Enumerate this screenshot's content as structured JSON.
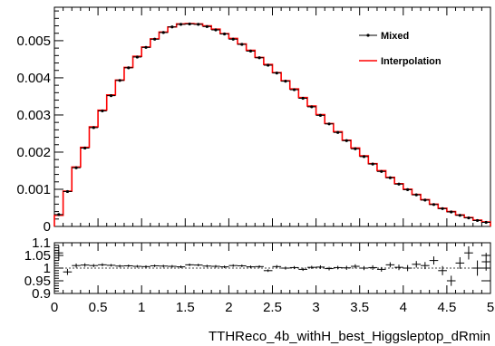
{
  "chart_data": [
    {
      "type": "line",
      "title": "",
      "xlabel": "",
      "ylabel": "",
      "xlim": [
        0,
        5
      ],
      "ylim": [
        0,
        0.0059
      ],
      "x_ticks": [
        0,
        0.5,
        1,
        1.5,
        2,
        2.5,
        3,
        3.5,
        4,
        4.5,
        5
      ],
      "y_ticks": [
        "0",
        "0.001",
        "0.002",
        "0.003",
        "0.004",
        "0.005"
      ],
      "y_tick_values": [
        0,
        0.001,
        0.002,
        0.003,
        0.004,
        0.005
      ],
      "legend_position": "top-right",
      "bin_width": 0.1,
      "bin_centers": [
        0.05,
        0.15,
        0.25,
        0.35,
        0.45,
        0.55,
        0.65,
        0.75,
        0.85,
        0.95,
        1.05,
        1.15,
        1.25,
        1.35,
        1.45,
        1.55,
        1.65,
        1.75,
        1.85,
        1.95,
        2.05,
        2.15,
        2.25,
        2.35,
        2.45,
        2.55,
        2.65,
        2.75,
        2.85,
        2.95,
        3.05,
        3.15,
        3.25,
        3.35,
        3.45,
        3.55,
        3.65,
        3.75,
        3.85,
        3.95,
        4.05,
        4.15,
        4.25,
        4.35,
        4.45,
        4.55,
        4.65,
        4.75,
        4.85,
        4.95
      ],
      "series": [
        {
          "name": "Mixed",
          "style": "points-with-errors",
          "color": "#000000",
          "values": [
            0.00032,
            0.00094,
            0.00158,
            0.00211,
            0.00266,
            0.00311,
            0.00352,
            0.00393,
            0.00427,
            0.00456,
            0.00482,
            0.00504,
            0.00522,
            0.00537,
            0.00544,
            0.00545,
            0.00544,
            0.00538,
            0.00529,
            0.00518,
            0.00504,
            0.0049,
            0.00472,
            0.00454,
            0.00434,
            0.00413,
            0.00391,
            0.00368,
            0.00345,
            0.00322,
            0.00299,
            0.00276,
            0.00253,
            0.00231,
            0.00209,
            0.00188,
            0.00168,
            0.00148,
            0.00131,
            0.00114,
            0.00099,
            0.00085,
            0.00071,
            0.00059,
            0.00048,
            0.00039,
            0.0003,
            0.00023,
            0.00016,
            0.00011
          ]
        },
        {
          "name": "Interpolation",
          "style": "step",
          "color": "#ff0000",
          "values": [
            0.0003,
            0.00095,
            0.0016,
            0.00213,
            0.00268,
            0.00313,
            0.00354,
            0.00394,
            0.00428,
            0.00458,
            0.00483,
            0.00505,
            0.00523,
            0.00537,
            0.00545,
            0.00546,
            0.00545,
            0.0054,
            0.00531,
            0.00519,
            0.00506,
            0.00491,
            0.00474,
            0.00455,
            0.00436,
            0.00414,
            0.00392,
            0.0037,
            0.00347,
            0.00324,
            0.00301,
            0.00277,
            0.00255,
            0.00232,
            0.00211,
            0.0019,
            0.00169,
            0.0015,
            0.00132,
            0.00115,
            0.001,
            0.00086,
            0.00072,
            0.0006,
            0.00049,
            0.0004,
            0.00031,
            0.00024,
            0.00017,
            0.00012
          ]
        }
      ]
    },
    {
      "type": "scatter",
      "title": "",
      "xlabel": "TTHReco_4b_withH_best_Higgsleptop_dRmin",
      "ylabel": "",
      "xlim": [
        0,
        5
      ],
      "ylim": [
        0.9,
        1.1
      ],
      "x_ticks": [
        0,
        0.5,
        1,
        1.5,
        2,
        2.5,
        3,
        3.5,
        4,
        4.5,
        5
      ],
      "y_ticks": [
        "0.9",
        "0.95",
        "1",
        "1.05",
        "1.1"
      ],
      "y_tick_values": [
        0.9,
        0.95,
        1,
        1.05,
        1.1
      ],
      "reference_line": 1,
      "x": [
        0.05,
        0.15,
        0.25,
        0.35,
        0.45,
        0.55,
        0.65,
        0.75,
        0.85,
        0.95,
        1.05,
        1.15,
        1.25,
        1.35,
        1.45,
        1.55,
        1.65,
        1.75,
        1.85,
        1.95,
        2.05,
        2.15,
        2.25,
        2.35,
        2.45,
        2.55,
        2.65,
        2.75,
        2.85,
        2.95,
        3.05,
        3.15,
        3.25,
        3.35,
        3.45,
        3.55,
        3.65,
        3.75,
        3.85,
        3.95,
        4.05,
        4.15,
        4.25,
        4.35,
        4.45,
        4.55,
        4.65,
        4.75,
        4.85,
        4.95
      ],
      "y": [
        1.06,
        0.985,
        1.01,
        1.012,
        1.01,
        1.013,
        1.011,
        1.008,
        1.009,
        1.007,
        1.006,
        1.009,
        1.008,
        1.007,
        1.005,
        1.013,
        1.012,
        1.008,
        1.007,
        1.005,
        1.01,
        1.009,
        1.005,
        1.006,
        0.99,
        1.006,
        1.0,
        1.002,
        0.995,
        1.003,
        1.004,
        0.998,
        1.002,
        1.001,
        1.007,
        1.0,
        1.002,
        0.995,
        1.013,
        1.003,
        1.0,
        1.015,
        1.01,
        1.03,
        0.99,
        0.95,
        1.02,
        1.06,
        1.0,
        1.025
      ],
      "y_err": [
        0.03,
        0.012,
        0.008,
        0.007,
        0.006,
        0.006,
        0.005,
        0.005,
        0.005,
        0.005,
        0.005,
        0.005,
        0.005,
        0.005,
        0.005,
        0.005,
        0.005,
        0.005,
        0.005,
        0.005,
        0.005,
        0.005,
        0.005,
        0.005,
        0.005,
        0.006,
        0.006,
        0.006,
        0.006,
        0.006,
        0.007,
        0.007,
        0.007,
        0.008,
        0.008,
        0.008,
        0.009,
        0.009,
        0.01,
        0.011,
        0.012,
        0.013,
        0.014,
        0.016,
        0.018,
        0.02,
        0.023,
        0.026,
        0.03,
        0.035
      ]
    }
  ]
}
